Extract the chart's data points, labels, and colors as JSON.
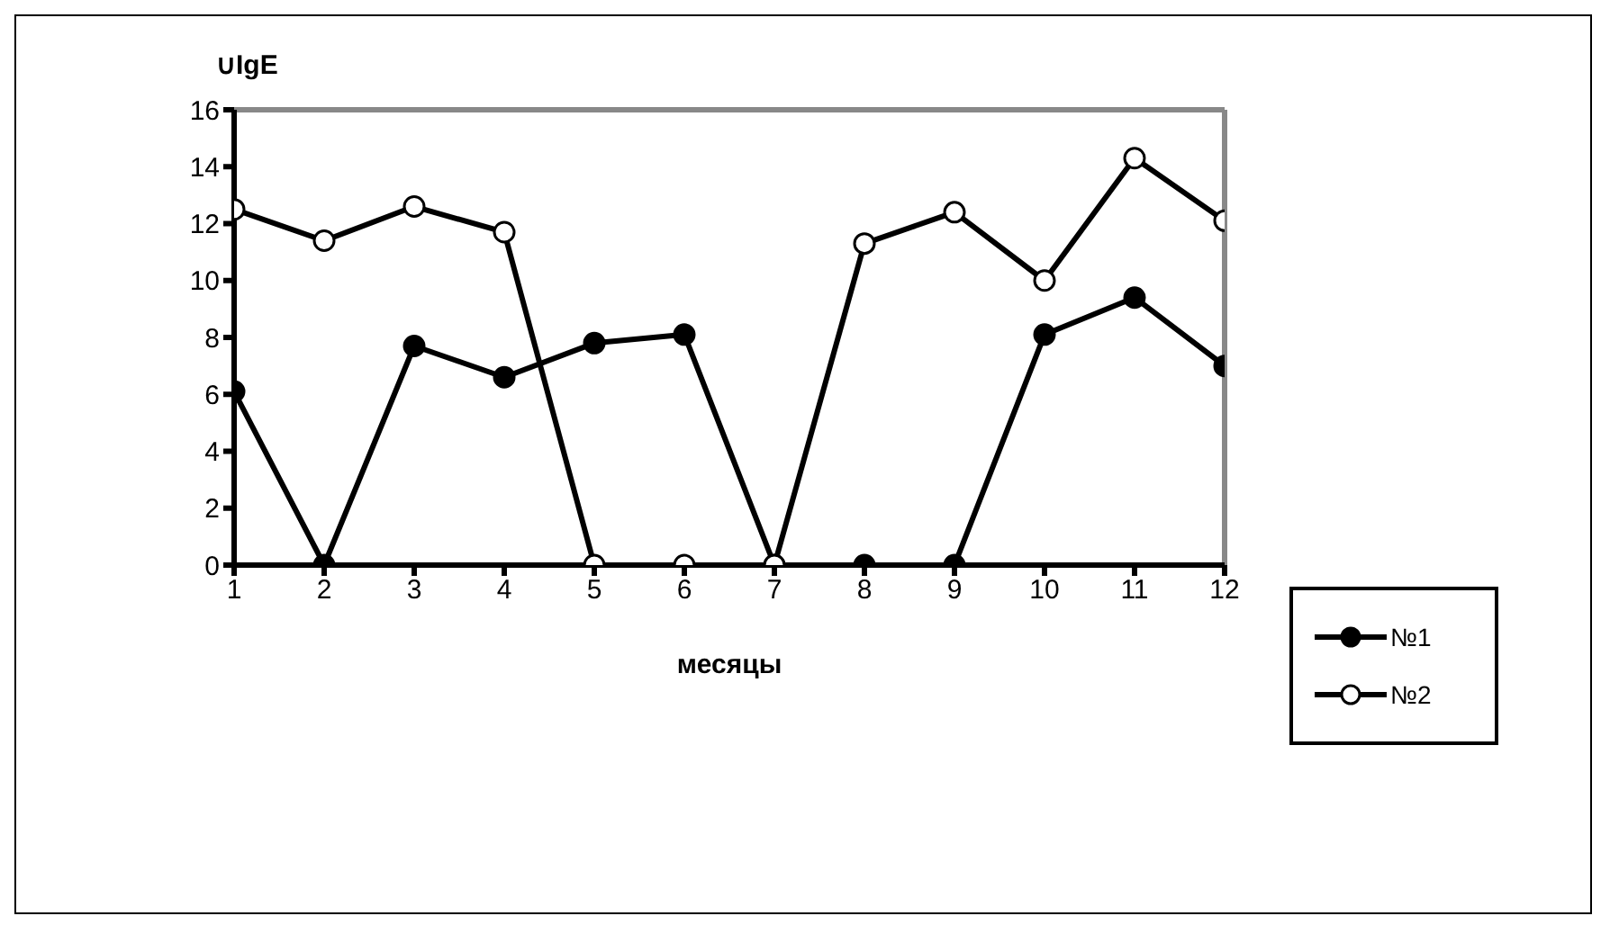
{
  "chart_data": {
    "type": "line",
    "xlabel": "месяцы",
    "ylabel": "∪IgE",
    "x": [
      1,
      2,
      3,
      4,
      5,
      6,
      7,
      8,
      9,
      10,
      11,
      12
    ],
    "series": [
      {
        "name": "№1",
        "color": "#000000",
        "values": [
          6.1,
          0,
          7.7,
          6.6,
          7.8,
          8.1,
          0,
          0,
          0,
          8.1,
          9.4,
          7.0
        ]
      },
      {
        "name": "№2",
        "color": "#000000",
        "values": [
          12.5,
          11.4,
          12.6,
          11.7,
          0,
          0,
          0,
          11.3,
          12.4,
          10.0,
          14.3,
          12.1
        ]
      }
    ],
    "xlim": [
      1,
      12
    ],
    "xticks": [
      1,
      2,
      3,
      4,
      5,
      6,
      7,
      8,
      9,
      10,
      11,
      12
    ],
    "ylim": [
      0,
      16
    ],
    "yticks": [
      0,
      2,
      4,
      6,
      8,
      10,
      12,
      14,
      16
    ],
    "grid": false,
    "legend": "bottom right",
    "marker": "circle",
    "line_style": "solid"
  }
}
